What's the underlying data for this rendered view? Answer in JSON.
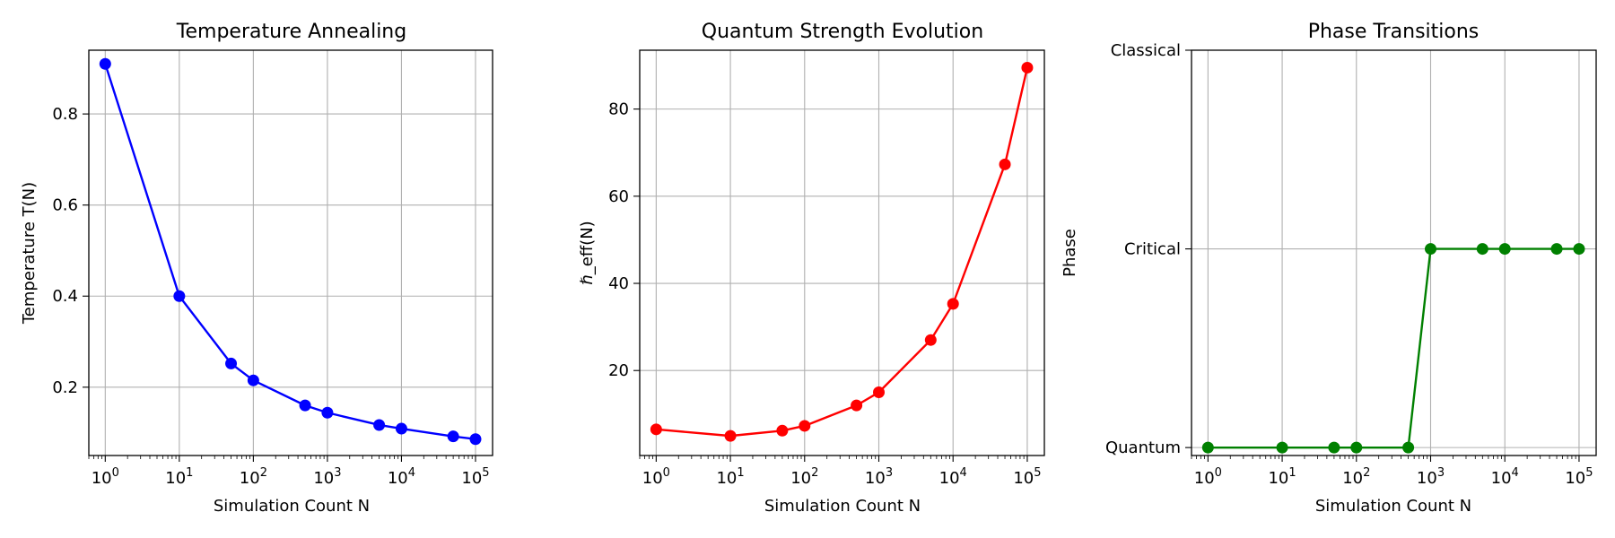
{
  "chart_data": [
    {
      "type": "line",
      "title": "Temperature Annealing",
      "xlabel": "Simulation Count N",
      "ylabel": "Temperature T(N)",
      "x_scale": "log",
      "xlim": [
        0.6,
        170000
      ],
      "ylim": [
        0.05,
        0.94
      ],
      "x_ticks": [
        {
          "value": 1,
          "base": "10",
          "exp": "0"
        },
        {
          "value": 10,
          "base": "10",
          "exp": "1"
        },
        {
          "value": 100,
          "base": "10",
          "exp": "2"
        },
        {
          "value": 1000,
          "base": "10",
          "exp": "3"
        },
        {
          "value": 10000,
          "base": "10",
          "exp": "4"
        },
        {
          "value": 100000,
          "base": "10",
          "exp": "5"
        }
      ],
      "y_ticks": [
        {
          "value": 0.2,
          "label": "0.2"
        },
        {
          "value": 0.4,
          "label": "0.4"
        },
        {
          "value": 0.6,
          "label": "0.6"
        },
        {
          "value": 0.8,
          "label": "0.8"
        }
      ],
      "grid": true,
      "color": "#0000ff",
      "series": [
        {
          "x": [
            1,
            10,
            50,
            100,
            500,
            1000,
            5000,
            10000,
            50000,
            100000
          ],
          "y": [
            0.91,
            0.4,
            0.252,
            0.215,
            0.16,
            0.144,
            0.117,
            0.109,
            0.092,
            0.086
          ]
        }
      ]
    },
    {
      "type": "line",
      "title": "Quantum Strength Evolution",
      "xlabel": "Simulation Count N",
      "ylabel": "ℏ_eff(N)",
      "x_scale": "log",
      "xlim": [
        0.6,
        170000
      ],
      "ylim": [
        0.5,
        93.5
      ],
      "x_ticks": [
        {
          "value": 1,
          "base": "10",
          "exp": "0"
        },
        {
          "value": 10,
          "base": "10",
          "exp": "1"
        },
        {
          "value": 100,
          "base": "10",
          "exp": "2"
        },
        {
          "value": 1000,
          "base": "10",
          "exp": "3"
        },
        {
          "value": 10000,
          "base": "10",
          "exp": "4"
        },
        {
          "value": 100000,
          "base": "10",
          "exp": "5"
        }
      ],
      "y_ticks": [
        {
          "value": 20,
          "label": "20"
        },
        {
          "value": 40,
          "label": "40"
        },
        {
          "value": 60,
          "label": "60"
        },
        {
          "value": 80,
          "label": "80"
        }
      ],
      "grid": true,
      "color": "#ff0000",
      "series": [
        {
          "x": [
            1,
            10,
            50,
            100,
            500,
            1000,
            5000,
            10000,
            50000,
            100000
          ],
          "y": [
            6.5,
            5.0,
            6.2,
            7.3,
            12.0,
            15.0,
            27.0,
            35.3,
            67.3,
            89.5
          ]
        }
      ]
    },
    {
      "type": "line",
      "title": "Phase Transitions",
      "xlabel": "Simulation Count N",
      "ylabel": "Phase",
      "x_scale": "log",
      "xlim": [
        0.6,
        170000
      ],
      "ylim": [
        -0.04,
        2.0
      ],
      "x_ticks": [
        {
          "value": 1,
          "base": "10",
          "exp": "0"
        },
        {
          "value": 10,
          "base": "10",
          "exp": "1"
        },
        {
          "value": 100,
          "base": "10",
          "exp": "2"
        },
        {
          "value": 1000,
          "base": "10",
          "exp": "3"
        },
        {
          "value": 10000,
          "base": "10",
          "exp": "4"
        },
        {
          "value": 100000,
          "base": "10",
          "exp": "5"
        }
      ],
      "y_ticks": [
        {
          "value": 0,
          "label": "Quantum"
        },
        {
          "value": 1,
          "label": "Critical"
        },
        {
          "value": 2,
          "label": "Classical"
        }
      ],
      "grid": true,
      "color": "#008000",
      "series": [
        {
          "x": [
            1,
            10,
            50,
            100,
            500,
            1000,
            5000,
            10000,
            50000,
            100000
          ],
          "y": [
            0,
            0,
            0,
            0,
            0,
            1,
            1,
            1,
            1,
            1
          ]
        }
      ]
    }
  ]
}
